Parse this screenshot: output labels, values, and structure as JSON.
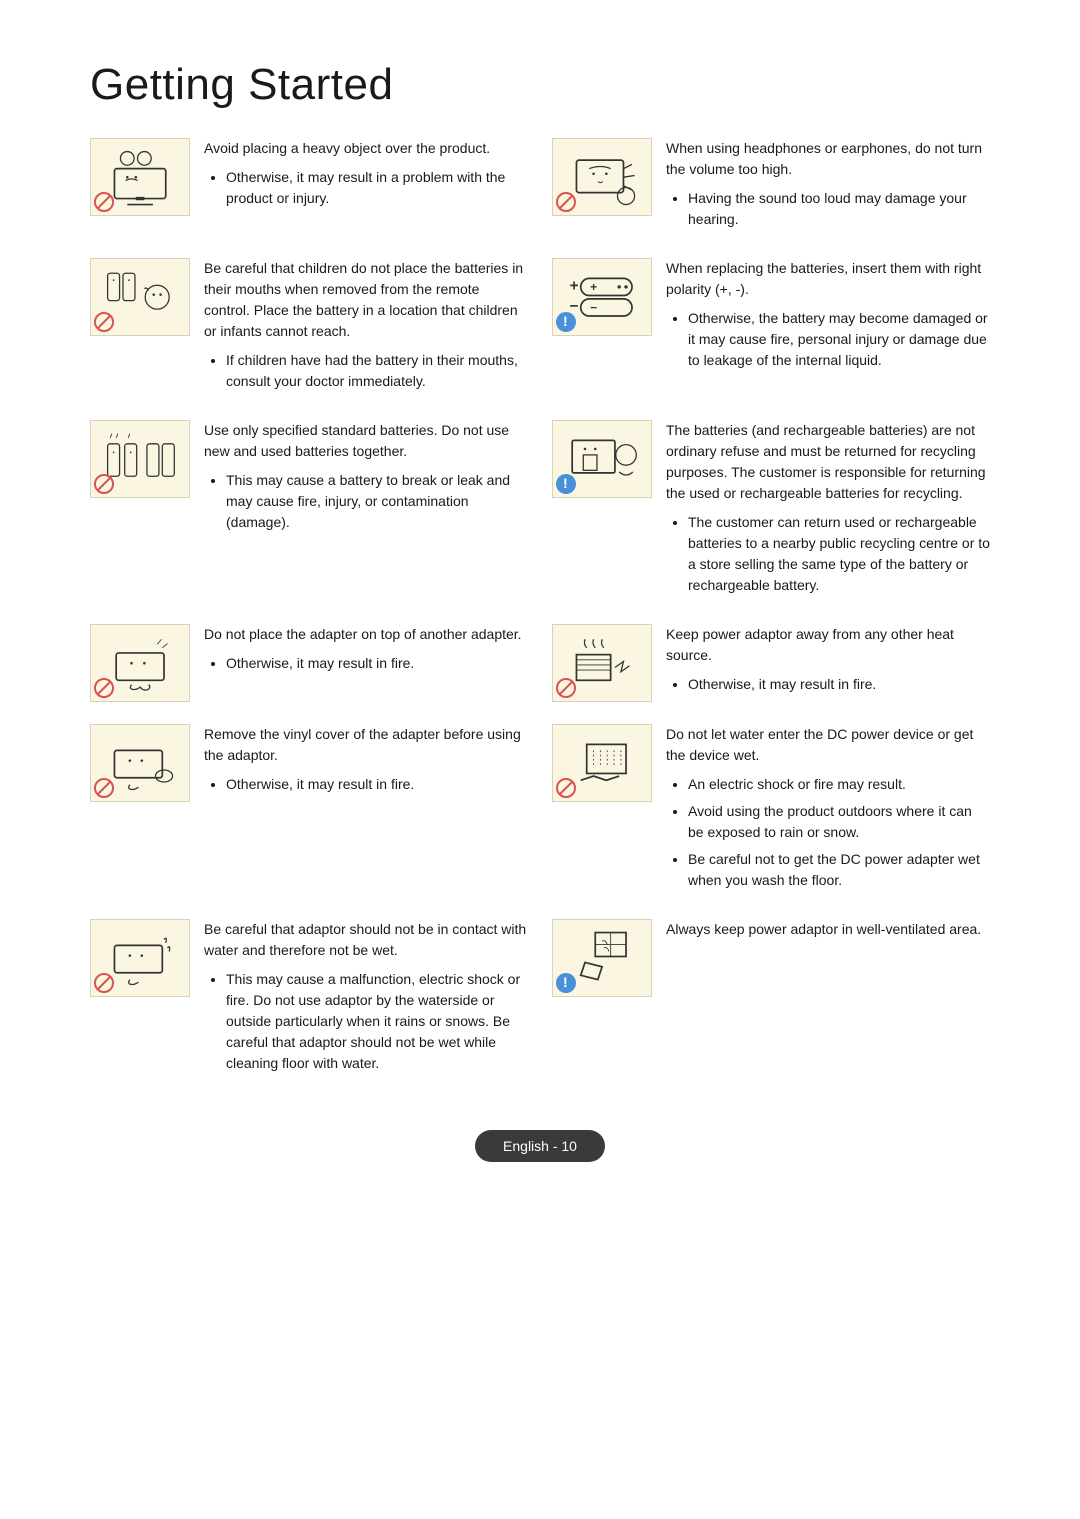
{
  "title": "Getting Started",
  "page_label": "English - 10",
  "rows": [
    {
      "left": {
        "symbol": "prohibit",
        "heading": "Avoid placing a heavy object over the product.",
        "bullets": [
          "Otherwise, it may result in a problem with the product or injury."
        ]
      },
      "right": {
        "symbol": "prohibit",
        "heading": "When using headphones or earphones, do not turn the volume too high.",
        "bullets": [
          "Having the sound too loud may damage your hearing."
        ]
      }
    },
    {
      "left": {
        "symbol": "prohibit",
        "heading": "Be careful that children do not place the batteries in their mouths when removed from the remote control. Place the battery in a location that children or infants cannot reach.",
        "bullets": [
          "If children have had the battery in their mouths, consult your doctor immediately."
        ]
      },
      "right": {
        "symbol": "info",
        "heading": "When replacing the batteries, insert them with right polarity (+, -).",
        "bullets": [
          "Otherwise, the battery may become damaged or it may cause fire, personal injury or damage due to leakage of the internal liquid."
        ]
      }
    },
    {
      "left": {
        "symbol": "prohibit",
        "heading": "Use only specified standard batteries. Do not use new and used batteries together.",
        "bullets": [
          "This may cause a battery to break or leak and may cause fire, injury, or contamination (damage)."
        ]
      },
      "right": {
        "symbol": "info",
        "heading": "The batteries (and rechargeable batteries) are not ordinary refuse and must be returned for recycling purposes. The customer is responsible for returning the used or rechargeable batteries for recycling.",
        "bullets": [
          "The customer can return used or rechargeable batteries to a nearby public recycling centre or to a store selling the same type of the battery or rechargeable battery."
        ]
      }
    },
    {
      "left": {
        "symbol": "prohibit",
        "heading": "Do not place the adapter on top of another adapter.",
        "bullets": [
          "Otherwise, it may result in fire."
        ]
      },
      "right": {
        "symbol": "prohibit",
        "heading": "Keep power adaptor away from any other heat source.",
        "bullets": [
          "Otherwise, it may result in fire."
        ]
      }
    },
    {
      "left": {
        "symbol": "prohibit",
        "heading": "Remove the vinyl cover of the adapter before using the adaptor.",
        "bullets": [
          "Otherwise, it may result in fire."
        ]
      },
      "right": {
        "symbol": "prohibit",
        "heading": "Do not let water enter the DC power device or get the device wet.",
        "bullets": [
          "An electric shock or fire may result.",
          "Avoid using the product outdoors where it can be exposed to rain or snow.",
          "Be careful not to get the DC power adapter wet when you wash the floor."
        ]
      }
    },
    {
      "left": {
        "symbol": "prohibit",
        "heading": "Be careful that adaptor should not be in contact with water and therefore not be wet.",
        "bullets": [
          "This may cause a malfunction, electric shock or fire. Do not use adaptor by the waterside or  outside particularly when it rains or snows. Be careful that adaptor should not be wet while cleaning floor with water."
        ]
      },
      "right": {
        "symbol": "info",
        "heading": "Always keep power adaptor in well-ventilated area.",
        "bullets": []
      }
    }
  ]
}
